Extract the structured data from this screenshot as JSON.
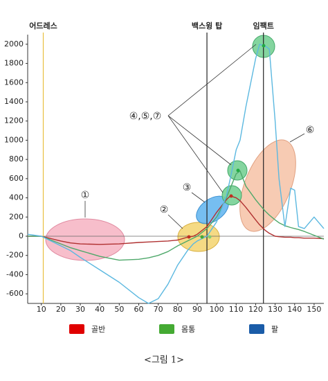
{
  "chart_data": {
    "type": "line",
    "caption": "<그림 1>",
    "x": [
      3,
      10,
      20,
      25,
      30,
      40,
      50,
      60,
      65,
      70,
      75,
      80,
      85,
      88,
      90,
      95,
      100,
      105,
      107,
      110,
      112,
      115,
      120,
      122,
      125,
      127,
      130,
      132,
      135,
      138,
      140,
      142,
      145,
      150,
      155
    ],
    "series": [
      {
        "name": "골반",
        "color": "#e00000",
        "line_color": "#b03030",
        "values": [
          0,
          0,
          -50,
          -70,
          -80,
          -85,
          -80,
          -65,
          -60,
          -55,
          -50,
          -40,
          -10,
          0,
          20,
          100,
          250,
          380,
          420,
          400,
          370,
          300,
          170,
          120,
          60,
          30,
          0,
          -5,
          -10,
          -10,
          -15,
          -15,
          -20,
          -20,
          -25
        ]
      },
      {
        "name": "몸통",
        "color": "#44aa33",
        "line_color": "#4ea86a",
        "values": [
          0,
          0,
          -80,
          -120,
          -150,
          -210,
          -250,
          -240,
          -225,
          -200,
          -160,
          -100,
          -50,
          -20,
          0,
          80,
          200,
          400,
          500,
          650,
          680,
          520,
          380,
          330,
          260,
          220,
          170,
          140,
          110,
          90,
          80,
          70,
          50,
          10,
          -30
        ]
      },
      {
        "name": "팔",
        "color": "#1a5ca8",
        "line_color": "#5bb8e0",
        "values": [
          20,
          0,
          -100,
          -150,
          -220,
          -350,
          -480,
          -640,
          -700,
          -650,
          -500,
          -300,
          -150,
          -80,
          -50,
          0,
          150,
          420,
          600,
          900,
          1000,
          1350,
          1850,
          2000,
          1980,
          1950,
          1200,
          600,
          100,
          500,
          480,
          100,
          80,
          200,
          80
        ]
      }
    ],
    "events": [
      {
        "label": "어드레스",
        "x": 11,
        "color": "#e8c040"
      },
      {
        "label": "백스윙 탑",
        "x": 95,
        "color": "#222222"
      },
      {
        "label": "임팩트",
        "x": 124,
        "color": "#222222"
      }
    ],
    "annotations": [
      "①",
      "②",
      "③",
      "④,⑤,⑦",
      "⑥"
    ],
    "xlim": [
      3,
      155
    ],
    "xticks": [
      10,
      20,
      30,
      40,
      50,
      60,
      70,
      80,
      90,
      100,
      110,
      120,
      130,
      140,
      150
    ],
    "ylim": [
      -700,
      2100
    ],
    "yticks": [
      -600,
      -400,
      -200,
      0,
      200,
      400,
      600,
      800,
      1000,
      1200,
      1400,
      1600,
      1800,
      2000
    ],
    "zero_line": true
  }
}
